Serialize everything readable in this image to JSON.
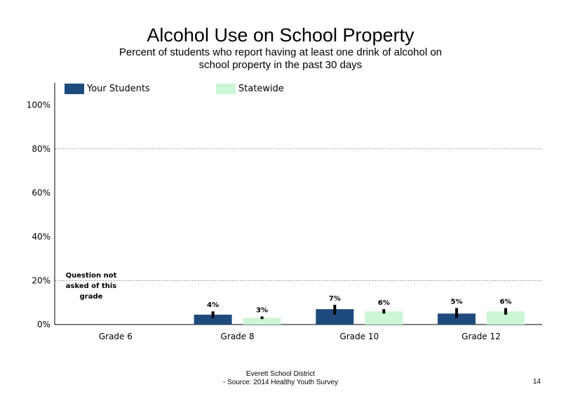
{
  "title": "Alcohol Use on School  Property",
  "subtitle": "Percent of students  who report having at least one drink of alcohol on school property in the past 30 days",
  "legend": {
    "your_students": "Your Students",
    "statewide": "Statewide"
  },
  "colors": {
    "your_students": "#1f4a7d",
    "statewide": "#ccf7d6"
  },
  "note": "Question not asked of this grade",
  "footer": {
    "line1": "Everett School District",
    "line2": "- Source: 2014 Healthy  Youth Survey"
  },
  "page_number": "14",
  "chart_data": {
    "type": "bar",
    "categories": [
      "Grade 6",
      "Grade 8",
      "Grade 10",
      "Grade 12"
    ],
    "series": [
      {
        "name": "Your Students",
        "values": [
          null,
          4.5,
          7,
          5
        ],
        "labels": [
          "",
          "4%",
          "7%",
          "5%"
        ],
        "error_low": [
          null,
          3,
          4.5,
          3
        ],
        "error_high": [
          null,
          6,
          9,
          7.5
        ]
      },
      {
        "name": "Statewide",
        "values": [
          null,
          3,
          6,
          6
        ],
        "labels": [
          "",
          "3%",
          "6%",
          "6%"
        ],
        "error_low": [
          null,
          2.5,
          5,
          4.5
        ],
        "error_high": [
          null,
          3.7,
          7,
          7.5
        ]
      }
    ],
    "ylim": [
      0,
      110
    ],
    "yticks": [
      0,
      20,
      40,
      60,
      80,
      100
    ],
    "ytick_labels": [
      "0%",
      "20%",
      "40%",
      "60%",
      "80%",
      "100%"
    ],
    "grid": "dotted horizontal at 20% and 80%",
    "legend_position": "top"
  }
}
